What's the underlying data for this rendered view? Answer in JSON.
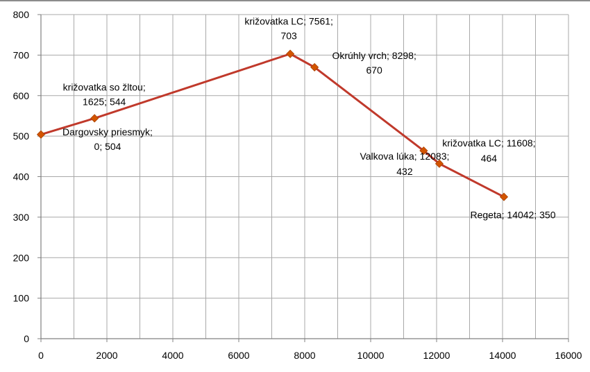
{
  "chart_data": {
    "type": "scatter",
    "title": "",
    "xlabel": "",
    "ylabel": "",
    "xlim": [
      0,
      16000
    ],
    "ylim": [
      0,
      800
    ],
    "x_ticks": [
      0,
      2000,
      4000,
      6000,
      8000,
      10000,
      12000,
      14000,
      16000
    ],
    "y_ticks": [
      0,
      100,
      200,
      300,
      400,
      500,
      600,
      700,
      800
    ],
    "grid": true,
    "legend": "none",
    "series": [
      {
        "line_color": "#c0392b",
        "marker_color": "#d35400",
        "marker": "diamond",
        "points": [
          {
            "x": 0,
            "y": 504,
            "label_lines": [
              "Dargovsky priesmyk;",
              "0; 504"
            ]
          },
          {
            "x": 1625,
            "y": 544,
            "label_lines": [
              "križovatka so žltou;",
              "1625; 544"
            ]
          },
          {
            "x": 7561,
            "y": 703,
            "label_lines": [
              "križovatka LC; 7561;",
              "703"
            ]
          },
          {
            "x": 8298,
            "y": 670,
            "label_lines": [
              "Okrúhly vrch; 8298;",
              "670"
            ]
          },
          {
            "x": 11608,
            "y": 464,
            "label_lines": [
              "križovatka LC; 11608;",
              "464"
            ]
          },
          {
            "x": 12083,
            "y": 432,
            "label_lines": [
              "Valkova lúka; 12083;",
              "432"
            ]
          },
          {
            "x": 14042,
            "y": 350,
            "label_lines": [
              "Regeta; 14042; 350"
            ]
          }
        ]
      }
    ]
  }
}
